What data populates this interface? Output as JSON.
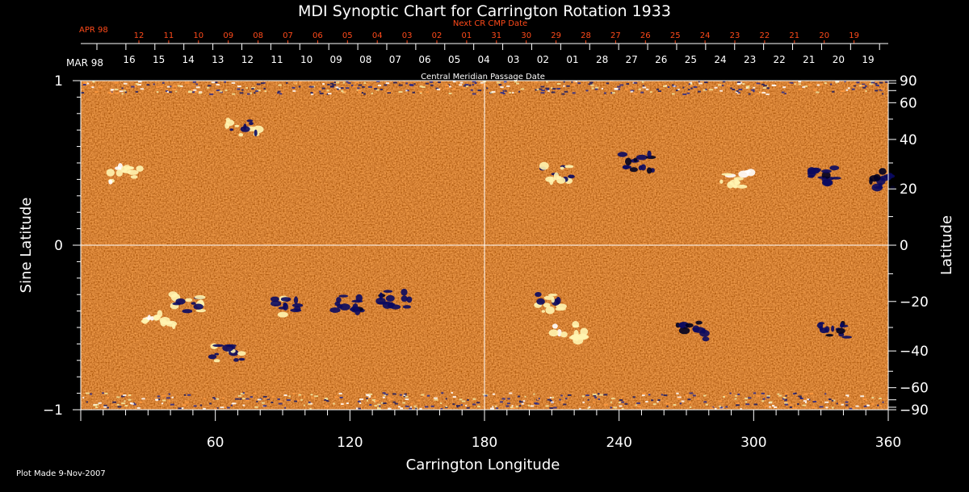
{
  "chart_data": {
    "type": "heatmap",
    "title": "MDI Synoptic Chart for Carrington Rotation 1933",
    "xlabel": "Carrington Longitude",
    "ylabel_left": "Sine Latitude",
    "ylabel_right": "Latitude",
    "xlim": [
      0,
      360
    ],
    "ylim": [
      -1,
      1
    ],
    "x_ticks": [
      60,
      120,
      180,
      240,
      300,
      360
    ],
    "y_ticks_left": [
      "1",
      "0",
      "−1"
    ],
    "y_ticks_right": [
      "90",
      "60",
      "40",
      "20",
      "0",
      "−20",
      "−40",
      "−60",
      "−90"
    ],
    "y_ticks_right_values": [
      90,
      60,
      40,
      20,
      0,
      -20,
      -40,
      -60,
      -90
    ],
    "grid": "center crosshair",
    "top_axis": {
      "label": "Central Meridian Passage Date",
      "month_label": "MAR 98",
      "dates": [
        "16",
        "15",
        "14",
        "13",
        "12",
        "11",
        "10",
        "09",
        "08",
        "07",
        "06",
        "05",
        "04",
        "03",
        "02",
        "01",
        "28",
        "27",
        "26",
        "25",
        "24",
        "23",
        "22",
        "21",
        "20",
        "19"
      ]
    },
    "next_axis": {
      "label": "Next CR CMP Date",
      "month_label": "APR 98",
      "dates": [
        "12",
        "11",
        "10",
        "09",
        "08",
        "07",
        "06",
        "05",
        "04",
        "03",
        "02",
        "01",
        "31",
        "30",
        "29",
        "28",
        "27",
        "26",
        "25",
        "24",
        "23",
        "22",
        "21",
        "20",
        "19"
      ]
    },
    "active_regions": [
      {
        "lon": 72,
        "sinlat": 0.72,
        "polarity": "mixed"
      },
      {
        "lon": 48,
        "sinlat": -0.35,
        "polarity": "mixed"
      },
      {
        "lon": 35,
        "sinlat": -0.45,
        "polarity": "positive"
      },
      {
        "lon": 65,
        "sinlat": -0.66,
        "polarity": "mixed"
      },
      {
        "lon": 90,
        "sinlat": -0.37,
        "polarity": "mixed"
      },
      {
        "lon": 120,
        "sinlat": -0.35,
        "polarity": "negative"
      },
      {
        "lon": 140,
        "sinlat": -0.33,
        "polarity": "negative"
      },
      {
        "lon": 210,
        "sinlat": -0.35,
        "polarity": "mixed"
      },
      {
        "lon": 218,
        "sinlat": -0.53,
        "polarity": "positive"
      },
      {
        "lon": 272,
        "sinlat": -0.52,
        "polarity": "negative"
      },
      {
        "lon": 335,
        "sinlat": -0.52,
        "polarity": "negative"
      },
      {
        "lon": 212,
        "sinlat": 0.43,
        "polarity": "mixed"
      },
      {
        "lon": 248,
        "sinlat": 0.5,
        "polarity": "negative"
      },
      {
        "lon": 292,
        "sinlat": 0.4,
        "polarity": "positive"
      },
      {
        "lon": 330,
        "sinlat": 0.43,
        "polarity": "negative"
      },
      {
        "lon": 357,
        "sinlat": 0.4,
        "polarity": "negative"
      },
      {
        "lon": 20,
        "sinlat": 0.43,
        "polarity": "positive"
      }
    ]
  },
  "footer": {
    "plot_made": "Plot Made  9-Nov-2007"
  },
  "colors": {
    "background": "#000000",
    "field_base": "#e85a12",
    "positive": "#fff4b0",
    "negative": "#0a0a60",
    "next_axis": "#ff4a1a",
    "axis": "#ffffff"
  }
}
